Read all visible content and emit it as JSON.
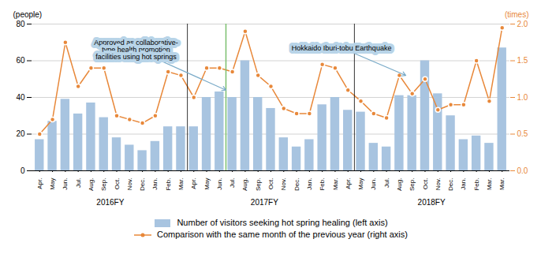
{
  "chart_data": {
    "type": "bar",
    "categories": [
      "Apr.",
      "May",
      "Jun.",
      "Jul.",
      "Aug.",
      "Sep.",
      "Oct.",
      "Nov.",
      "Dec.",
      "Jan.",
      "Feb.",
      "Mar.",
      "Apr.",
      "May",
      "Jun.",
      "Jul.",
      "Aug.",
      "Sep.",
      "Oct.",
      "Nov.",
      "Dec.",
      "Jan.",
      "Feb.",
      "Mar.",
      "Apr.",
      "May",
      "Jun.",
      "Jul.",
      "Aug.",
      "Sep.",
      "Oct.",
      "Nov.",
      "Dec.",
      "Jan.",
      "Feb.",
      "Mar.",
      "Mar."
    ],
    "series": [
      {
        "name": "Number of visitors seeking hot spring healing (left axis)",
        "type": "bar",
        "color": "#a8c4e0",
        "values": [
          17,
          27,
          39,
          31,
          37,
          29,
          18,
          14,
          11,
          16,
          24,
          24,
          24,
          40,
          43,
          40,
          60,
          40,
          34,
          18,
          13,
          17,
          36,
          40,
          33,
          32,
          15,
          13,
          41,
          41,
          60,
          42,
          30,
          17,
          19,
          15,
          67
        ]
      },
      {
        "name": "Comparison with the same month of the previous year (right axis)",
        "type": "line",
        "color": "#e8883a",
        "marker": "circle",
        "axis": "y2",
        "values": [
          0.5,
          0.7,
          1.75,
          1.15,
          1.4,
          1.4,
          0.75,
          0.7,
          0.65,
          0.75,
          1.35,
          1.3,
          1.0,
          1.4,
          1.4,
          1.35,
          1.9,
          1.3,
          1.15,
          0.85,
          0.78,
          0.78,
          1.45,
          1.4,
          1.1,
          0.95,
          0.78,
          0.72,
          1.3,
          1.05,
          1.25,
          0.83,
          0.9,
          0.9,
          1.5,
          0.95,
          1.95
        ]
      }
    ],
    "ylabel": "(people)",
    "y2label": "(times)",
    "ylim": [
      0,
      80
    ],
    "yticks": [
      0,
      20,
      40,
      60,
      80
    ],
    "y2lim": [
      0,
      2.0
    ],
    "y2ticks": [
      {
        "value": 0,
        "label": "0.0"
      },
      0.5,
      {
        "value": 1,
        "label": "1.0"
      },
      1.5,
      {
        "value": 2,
        "label": "2.0"
      }
    ],
    "grid": true,
    "legend": "bottom",
    "groups": [
      {
        "label": "2016FY",
        "start": 0,
        "end": 11
      },
      {
        "label": "2017FY",
        "start": 12,
        "end": 23
      },
      {
        "label": "2018FY",
        "start": 25,
        "end": 36
      }
    ],
    "vlines": [
      {
        "x": 11.5,
        "color": "black"
      },
      {
        "x": 24.5,
        "color": "black"
      },
      {
        "x": 14.5,
        "color": "#7abf6e"
      }
    ],
    "annotations": [
      {
        "text": "Approved as collaborative-\ntype health promotion\nfacilities using hot springs",
        "x": 14.5,
        "y": 44,
        "text_x": 7.5,
        "text_y": 66
      },
      {
        "text": "Hokkaido Iburi-tobu Earthquake",
        "x": 28.5,
        "y": 52,
        "text_x": 23.5,
        "text_y": 67
      }
    ]
  }
}
